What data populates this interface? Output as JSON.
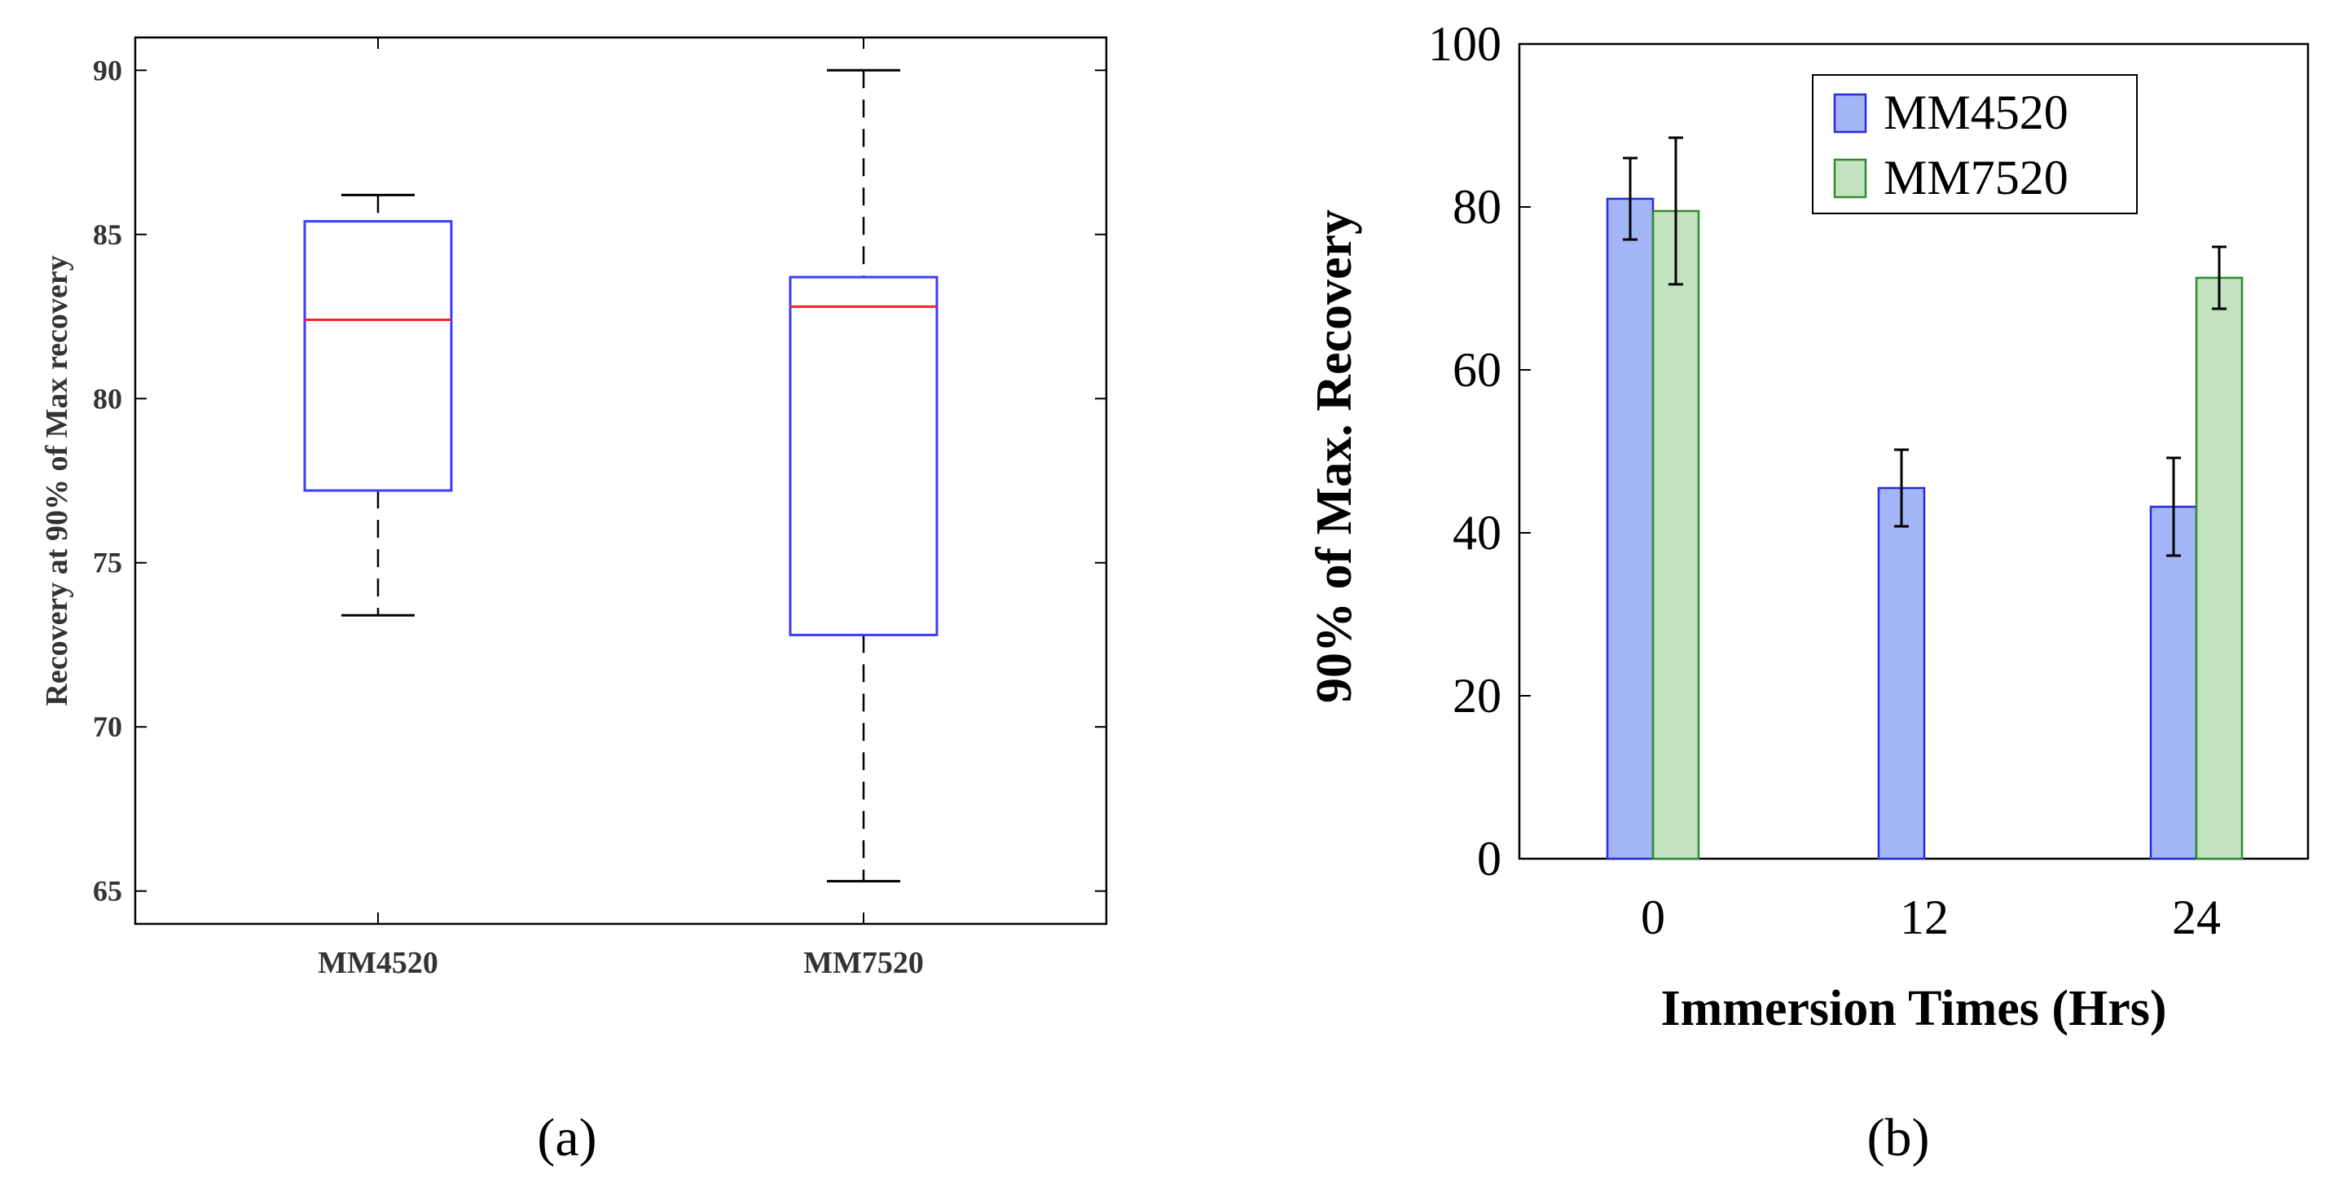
{
  "chart_data": [
    {
      "panel_label": "(a)",
      "type": "box",
      "title": "",
      "xlabel": "",
      "ylabel": "Recovery at 90% of Max recovery",
      "ylim": [
        64,
        91
      ],
      "yticks": [
        65,
        70,
        75,
        80,
        85,
        90
      ],
      "categories": [
        "MM4520",
        "MM7520"
      ],
      "boxes": [
        {
          "category": "MM4520",
          "whisker_low": 73.4,
          "q1": 77.2,
          "median": 82.4,
          "q3": 85.4,
          "whisker_high": 86.2
        },
        {
          "category": "MM7520",
          "whisker_low": 65.3,
          "q1": 72.8,
          "median": 82.8,
          "q3": 83.7,
          "whisker_high": 90.0
        }
      ],
      "colors": {
        "box": "#3b3bff",
        "median": "#ff2020",
        "whisker": "#000000"
      },
      "grid": false
    },
    {
      "panel_label": "(b)",
      "type": "bar",
      "title": "",
      "xlabel": "Immersion Times (Hrs)",
      "ylabel": "90% of Max. Recovery",
      "ylim": [
        0,
        100
      ],
      "yticks": [
        0,
        20,
        40,
        60,
        80,
        100
      ],
      "categories": [
        "0",
        "12",
        "24"
      ],
      "series": [
        {
          "name": "MM4520",
          "values": [
            81,
            45.5,
            43.2
          ],
          "errors": [
            5,
            4.7,
            6
          ],
          "fill": "#a3b4f7",
          "stroke": "#2a2ad8"
        },
        {
          "name": "MM7520",
          "values": [
            79.5,
            null,
            71.3
          ],
          "errors": [
            9,
            null,
            3.8
          ],
          "fill": "#c3e3c0",
          "stroke": "#2f8a2f"
        }
      ],
      "legend_position": "top-right",
      "grid": false
    }
  ]
}
